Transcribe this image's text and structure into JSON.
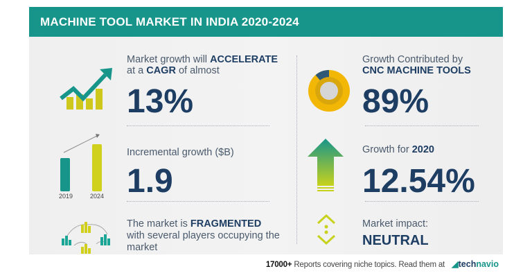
{
  "header": {
    "title": "MACHINE TOOL MARKET IN INDIA 2020-2024"
  },
  "cagr": {
    "line1_pre": "Market growth will ",
    "line1_bold": "ACCELERATE",
    "line2_pre": "at a ",
    "line2_bold": "CAGR",
    "line2_post": " of almost",
    "value": "13%"
  },
  "incremental": {
    "label": "Incremental growth ($B)",
    "value": "1.9",
    "bar_labels": [
      "2019",
      "2024"
    ]
  },
  "fragmented": {
    "pre": "The market is ",
    "bold": "FRAGMENTED",
    "line2": "with several players occupying the",
    "line3": "market"
  },
  "contribution": {
    "line1": "Growth Contributed by",
    "line2": "CNC MACHINE TOOLS",
    "value": "89%",
    "share": 0.89
  },
  "growth_year": {
    "pre": "Growth for ",
    "year": "2020",
    "value": "12.54%"
  },
  "impact": {
    "label": "Market impact:",
    "value": "NEUTRAL"
  },
  "footer": {
    "count": "17000+",
    "text": " Reports covering niche topics. Read them at",
    "logo_a": "tech",
    "logo_b": "navio"
  },
  "colors": {
    "teal": "#17958a",
    "navy": "#1d3d63",
    "yellow": "#f2b705",
    "lime": "#c7cf1c"
  }
}
